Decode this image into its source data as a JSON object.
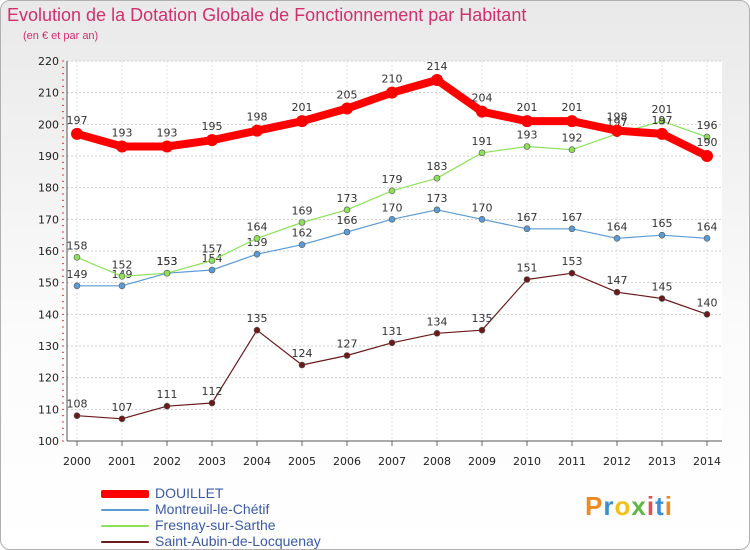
{
  "chart_data": {
    "type": "line",
    "title": "Evolution de la Dotation Globale de Fonctionnement par Habitant",
    "subtitle": "(en € et par an)",
    "xlabel": "",
    "ylabel": "",
    "x": [
      "2000",
      "2001",
      "2002",
      "2003",
      "2004",
      "2005",
      "2006",
      "2007",
      "2008",
      "2009",
      "2010",
      "2011",
      "2012",
      "2013",
      "2014"
    ],
    "ylim": [
      100,
      220
    ],
    "yticks": [
      "100",
      "110",
      "120",
      "130",
      "140",
      "150",
      "160",
      "170",
      "180",
      "190",
      "200",
      "210",
      "220"
    ],
    "grid": true,
    "legend_position": "bottom-left",
    "series": [
      {
        "name": "DOUILLET",
        "color": "#ff0000",
        "values": [
          197,
          193,
          193,
          195,
          198,
          201,
          205,
          210,
          214,
          204,
          201,
          201,
          198,
          197,
          190
        ]
      },
      {
        "name": "Montreuil-le-Chétif",
        "color": "#5b9bd5",
        "values": [
          149,
          149,
          153,
          154,
          159,
          162,
          166,
          170,
          173,
          170,
          167,
          167,
          164,
          165,
          164
        ]
      },
      {
        "name": "Fresnay-sur-Sarthe",
        "color": "#8ee05a",
        "values": [
          158,
          152,
          153,
          157,
          164,
          169,
          173,
          179,
          183,
          191,
          193,
          192,
          197,
          201,
          196
        ]
      },
      {
        "name": "Saint-Aubin-de-Locquenay",
        "color": "#6b1a1a",
        "values": [
          108,
          107,
          111,
          112,
          135,
          124,
          127,
          131,
          134,
          135,
          151,
          153,
          147,
          145,
          140
        ]
      }
    ]
  },
  "logo": {
    "text": "Proxiti"
  }
}
